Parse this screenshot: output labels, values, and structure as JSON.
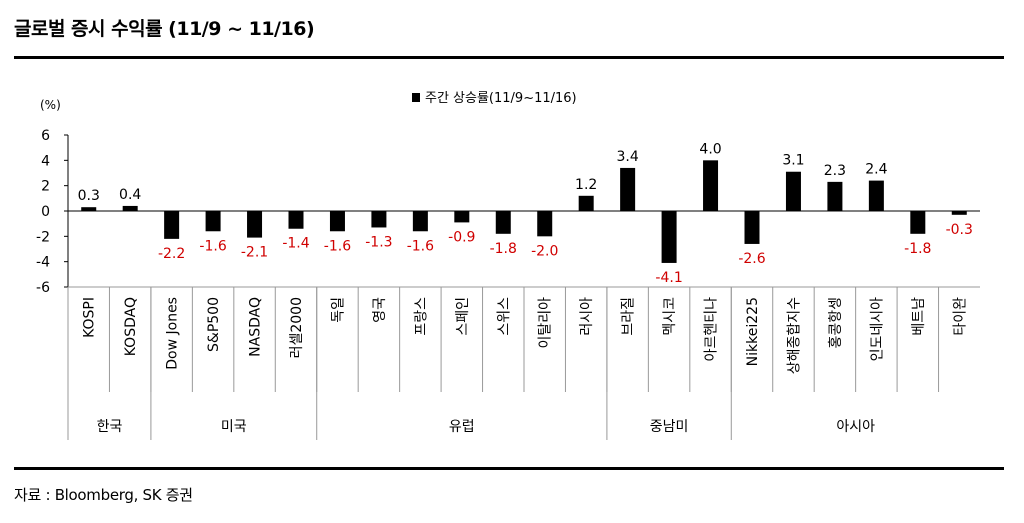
{
  "header": {
    "title": "글로벌 증시 수익률 (11/9 ~ 11/16)"
  },
  "footer": {
    "source": "자료 : Bloomberg, SK 증권"
  },
  "chart_data": {
    "type": "bar",
    "unit_label": "(%)",
    "legend": "주간 상승률(11/9~11/16)",
    "legend_position": "top-center",
    "bar_color": "#000000",
    "positive_label_color": "#000000",
    "negative_label_color": "#d00000",
    "ylim": [
      -6,
      6
    ],
    "yticks": [
      6,
      4,
      2,
      0,
      -2,
      -4,
      -6
    ],
    "grid": false,
    "categories": [
      "KOSPI",
      "KOSDAQ",
      "Dow Jones",
      "S&P500",
      "NASDAQ",
      "러셀2000",
      "독일",
      "영국",
      "프랑스",
      "스페인",
      "스위스",
      "이탈리아",
      "러시아",
      "브라질",
      "멕시코",
      "아르헨티나",
      "Nikkei225",
      "상해종합지수",
      "홍콩항셍",
      "인도네시아",
      "베트남",
      "타이완"
    ],
    "series": [
      {
        "values": [
          0.3,
          0.4,
          -2.2,
          -1.6,
          -2.1,
          -1.4,
          -1.6,
          -1.3,
          -1.6,
          -0.9,
          -1.8,
          -2.0,
          1.2,
          3.4,
          -4.1,
          4.0,
          -2.6,
          3.1,
          2.3,
          2.4,
          -1.8,
          -0.3
        ],
        "labels": [
          "0.3",
          "0.4",
          "-2.2",
          "-1.6",
          "-2.1",
          "-1.4",
          "-1.6",
          "-1.3",
          "-1.6",
          "-0.9",
          "-1.8",
          "-2.0",
          "1.2",
          "3.4",
          "-4.1",
          "4.0",
          "-2.6",
          "3.1",
          "2.3",
          "2.4",
          "-1.8",
          "-0.3"
        ],
        "label_visible": [
          true,
          true,
          true,
          true,
          true,
          true,
          true,
          true,
          true,
          true,
          true,
          true,
          true,
          true,
          true,
          true,
          true,
          true,
          true,
          true,
          true,
          true
        ]
      }
    ],
    "groups": [
      {
        "name": "한국",
        "start": 0,
        "end": 1
      },
      {
        "name": "미국",
        "start": 2,
        "end": 5
      },
      {
        "name": "유럽",
        "start": 6,
        "end": 12
      },
      {
        "name": "중남미",
        "start": 13,
        "end": 15
      },
      {
        "name": "아시아",
        "start": 16,
        "end": 21
      }
    ]
  }
}
